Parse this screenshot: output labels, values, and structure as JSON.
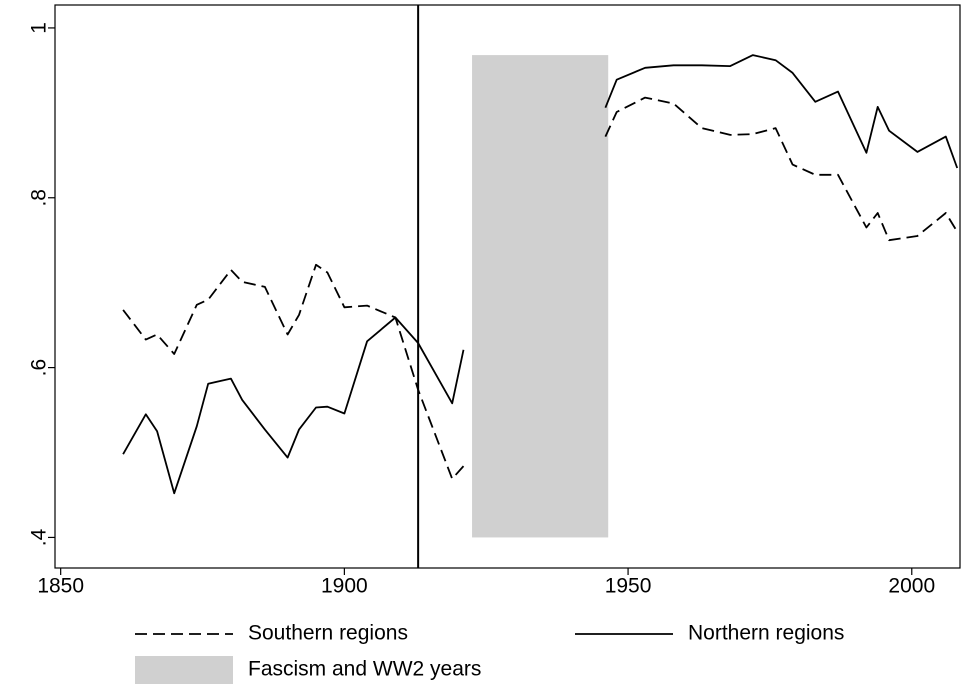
{
  "chart_data": {
    "type": "line",
    "x": [
      1861,
      1865,
      1867,
      1870,
      1874,
      1876,
      1880,
      1882,
      1886,
      1890,
      1892,
      1895,
      1897,
      1900,
      1904,
      1909,
      1913,
      1919,
      1921,
      1924,
      1946,
      1948,
      1953,
      1958,
      1963,
      1968,
      1972,
      1976,
      1979,
      1983,
      1987,
      1992,
      1994,
      1996,
      2001,
      2006,
      2008
    ],
    "series": [
      {
        "name": "Southern regions",
        "color": "#000000",
        "dash": true,
        "values": [
          0.668,
          0.633,
          0.639,
          0.616,
          0.674,
          0.68,
          0.715,
          0.701,
          0.695,
          0.639,
          0.662,
          0.721,
          0.712,
          0.671,
          0.673,
          0.659,
          0.574,
          0.469,
          0.484,
          null,
          0.872,
          0.901,
          0.918,
          0.911,
          0.882,
          0.874,
          0.875,
          0.882,
          0.839,
          0.827,
          0.827,
          0.765,
          0.782,
          0.75,
          0.755,
          0.782,
          0.76
        ]
      },
      {
        "name": "Northern regions",
        "color": "#000000",
        "dash": false,
        "values": [
          0.498,
          0.545,
          0.525,
          0.452,
          0.531,
          0.581,
          0.587,
          0.562,
          0.527,
          0.494,
          0.527,
          0.553,
          0.554,
          0.546,
          0.631,
          0.659,
          0.629,
          0.558,
          0.621,
          null,
          0.906,
          0.939,
          0.953,
          0.956,
          0.956,
          0.955,
          0.968,
          0.962,
          0.947,
          0.913,
          0.925,
          0.853,
          0.907,
          0.879,
          0.854,
          0.872,
          0.835
        ]
      }
    ],
    "shaded": {
      "name": "Fascism and WW2 years",
      "color": "#d0d0d0",
      "x": [
        1922.5,
        1946.5
      ],
      "y": [
        0.4,
        0.968
      ]
    },
    "vline": 1913,
    "xlim": [
      1849,
      2008.5
    ],
    "xticks": [
      1850,
      1900,
      1950,
      2000
    ],
    "ylim": [
      0.364,
      1.027
    ],
    "yticks": [
      {
        "value": 0.4,
        "label": ".4"
      },
      {
        "value": 0.6,
        "label": ".6"
      },
      {
        "value": 0.8,
        "label": ".8"
      },
      1
    ]
  }
}
